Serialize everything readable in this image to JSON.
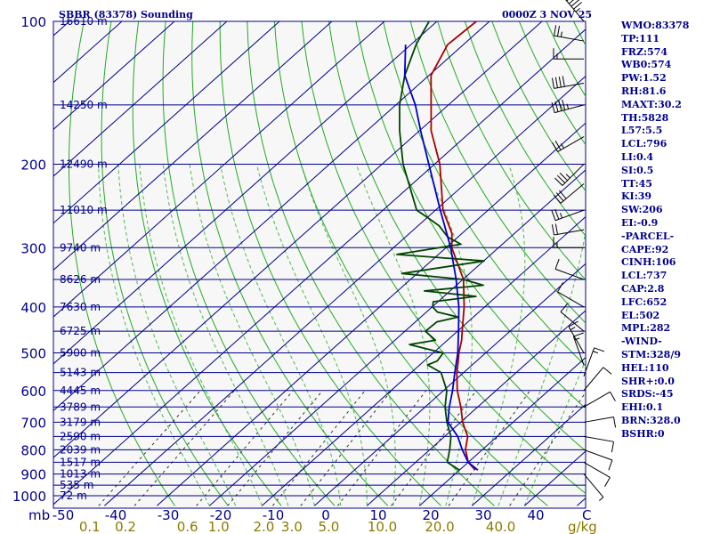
{
  "header": {
    "station_title": "SBBR (83378) Sounding",
    "time_label": "0000Z  3 NOV 25"
  },
  "colors": {
    "frame": "#00008b",
    "isotherm": "#00008b",
    "dry_adiabat": "#22aa22",
    "moist_adiabat": "#22aa22",
    "mixing_ratio": "#333333",
    "temperature": "#aa0000",
    "dewpoint": "#004400",
    "parcel": "#0000cc",
    "wind": "#000000"
  },
  "indices": [
    "WMO:83378",
    "TP:111",
    "FRZ:574",
    "WB0:574",
    "PW:1.52",
    "RH:81.6",
    "MAXT:30.2",
    "TH:5828",
    "L57:5.5",
    "LCL:796",
    "LI:0.4",
    "SI:0.5",
    "TT:45",
    "KI:39",
    "SW:206",
    "EI:-0.9",
    "-PARCEL-",
    "CAPE:92",
    "CINH:106",
    "LCL:737",
    "CAP:2.8",
    "LFC:652",
    "EL:502",
    "MPL:282",
    "-WIND-",
    "STM:328/9",
    "HEL:110",
    "SHR+:0.0",
    "SRDS:-45",
    "EHI:0.1",
    "BRN:328.0",
    "BSHR:0"
  ],
  "chart_data": {
    "type": "skew-t",
    "ylabel": "mb",
    "xlabel": "C",
    "mixing_ratio_unit": "g/kg",
    "pressure_ticks": [
      {
        "p": 100,
        "label": "100"
      },
      {
        "p": 200,
        "label": "200"
      },
      {
        "p": 300,
        "label": "300"
      },
      {
        "p": 400,
        "label": "400"
      },
      {
        "p": 500,
        "label": "500"
      },
      {
        "p": 600,
        "label": "600"
      },
      {
        "p": 700,
        "label": "700"
      },
      {
        "p": 800,
        "label": "800"
      },
      {
        "p": 900,
        "label": "900"
      },
      {
        "p": 1000,
        "label": "1000"
      }
    ],
    "height_levels": [
      {
        "p": 100,
        "label": "16610 m"
      },
      {
        "p": 150,
        "label": "14250 m"
      },
      {
        "p": 200,
        "label": "12490 m"
      },
      {
        "p": 250,
        "label": "11010 m"
      },
      {
        "p": 300,
        "label": "9740 m"
      },
      {
        "p": 350,
        "label": "8626 m"
      },
      {
        "p": 400,
        "label": "7630 m"
      },
      {
        "p": 450,
        "label": "6725 m"
      },
      {
        "p": 500,
        "label": "5900 m"
      },
      {
        "p": 550,
        "label": "5143 m"
      },
      {
        "p": 600,
        "label": "4445 m"
      },
      {
        "p": 650,
        "label": "3789 m"
      },
      {
        "p": 700,
        "label": "3179 m"
      },
      {
        "p": 750,
        "label": "2590 m"
      },
      {
        "p": 800,
        "label": "2039 m"
      },
      {
        "p": 850,
        "label": "1517 m"
      },
      {
        "p": 900,
        "label": "1013 m"
      },
      {
        "p": 950,
        "label": "535 m"
      },
      {
        "p": 1000,
        "label": "72 m"
      }
    ],
    "temperature_ticks": [
      "-50",
      "-40",
      "-30",
      "-20",
      "-10",
      "0",
      "10",
      "20",
      "30",
      "40"
    ],
    "temperature_values": [
      -50,
      -40,
      -30,
      -20,
      -10,
      0,
      10,
      20,
      30,
      40
    ],
    "mixing_ratio_ticks": [
      "0.1",
      "0.2",
      "0.6",
      "1.0",
      "2.0",
      "3.0",
      "5.0",
      "10.0",
      "20.0",
      "40.0"
    ],
    "mixing_ratio_values": [
      0.1,
      0.2,
      0.6,
      1.0,
      2.0,
      3.0,
      5.0,
      10.0,
      20.0,
      40.0
    ],
    "xlim": [
      -50,
      50
    ],
    "ylim": [
      1050,
      100
    ],
    "series": [
      {
        "key": "temperature",
        "points": [
          [
            883,
            23.0
          ],
          [
            850,
            20.0
          ],
          [
            800,
            16.8
          ],
          [
            750,
            14.4
          ],
          [
            700,
            10.4
          ],
          [
            650,
            6.8
          ],
          [
            600,
            2.6
          ],
          [
            550,
            -1.3
          ],
          [
            520,
            -3.5
          ],
          [
            500,
            -5.1
          ],
          [
            470,
            -7.3
          ],
          [
            450,
            -9.1
          ],
          [
            400,
            -13.9
          ],
          [
            350,
            -19.9
          ],
          [
            300,
            -28.9
          ],
          [
            280,
            -31.9
          ],
          [
            250,
            -38.6
          ],
          [
            200,
            -49.0
          ],
          [
            170,
            -57.8
          ],
          [
            150,
            -63.3
          ],
          [
            130,
            -69.6
          ],
          [
            112,
            -73.0
          ],
          [
            100,
            -72.5
          ]
        ]
      },
      {
        "key": "dewpoint",
        "points": [
          [
            883,
            20.0
          ],
          [
            850,
            16.0
          ],
          [
            800,
            13.8
          ],
          [
            750,
            11.2
          ],
          [
            700,
            7.4
          ],
          [
            650,
            3.8
          ],
          [
            600,
            0.6
          ],
          [
            550,
            -4.3
          ],
          [
            530,
            -8.5
          ],
          [
            520,
            -7.5
          ],
          [
            500,
            -8.1
          ],
          [
            480,
            -16.3
          ],
          [
            470,
            -12.3
          ],
          [
            450,
            -16.1
          ],
          [
            430,
            -15.9
          ],
          [
            420,
            -12.9
          ],
          [
            410,
            -17.9
          ],
          [
            400,
            -19.9
          ],
          [
            390,
            -20.9
          ],
          [
            380,
            -13.9
          ],
          [
            370,
            -24.9
          ],
          [
            360,
            -14.9
          ],
          [
            350,
            -19.9
          ],
          [
            340,
            -32.9
          ],
          [
            320,
            -19.9
          ],
          [
            310,
            -37.9
          ],
          [
            295,
            -27.9
          ],
          [
            285,
            -31.9
          ],
          [
            270,
            -35.9
          ],
          [
            260,
            -39.6
          ],
          [
            250,
            -43.6
          ],
          [
            200,
            -56.0
          ],
          [
            170,
            -63.8
          ],
          [
            150,
            -69.3
          ],
          [
            130,
            -74.6
          ],
          [
            112,
            -79.0
          ],
          [
            100,
            -81.5
          ]
        ]
      },
      {
        "key": "parcel",
        "points": [
          [
            883,
            23.5
          ],
          [
            850,
            20.0
          ],
          [
            800,
            16.2
          ],
          [
            750,
            12.5
          ],
          [
            700,
            7.6
          ],
          [
            650,
            4.6
          ],
          [
            600,
            1.7
          ],
          [
            550,
            -1.7
          ],
          [
            500,
            -5.3
          ],
          [
            450,
            -9.8
          ],
          [
            400,
            -14.9
          ],
          [
            350,
            -21.3
          ],
          [
            300,
            -29.1
          ],
          [
            250,
            -39.1
          ],
          [
            200,
            -51.1
          ],
          [
            170,
            -59.8
          ],
          [
            150,
            -66.3
          ],
          [
            130,
            -74.6
          ],
          [
            112,
            -81.0
          ]
        ]
      }
    ],
    "wind_barbs": [
      {
        "p": 100,
        "dir": 320,
        "spd": 55
      },
      {
        "p": 110,
        "dir": 280,
        "spd": 25
      },
      {
        "p": 120,
        "dir": 270,
        "spd": 15
      },
      {
        "p": 135,
        "dir": 260,
        "spd": 40
      },
      {
        "p": 150,
        "dir": 255,
        "spd": 45
      },
      {
        "p": 175,
        "dir": 240,
        "spd": 25
      },
      {
        "p": 200,
        "dir": 225,
        "spd": 35
      },
      {
        "p": 220,
        "dir": 230,
        "spd": 30
      },
      {
        "p": 250,
        "dir": 250,
        "spd": 25
      },
      {
        "p": 275,
        "dir": 260,
        "spd": 20
      },
      {
        "p": 300,
        "dir": 270,
        "spd": 15
      },
      {
        "p": 350,
        "dir": 290,
        "spd": 10
      },
      {
        "p": 400,
        "dir": 300,
        "spd": 10
      },
      {
        "p": 450,
        "dir": 310,
        "spd": 10
      },
      {
        "p": 500,
        "dir": 330,
        "spd": 15
      },
      {
        "p": 530,
        "dir": 340,
        "spd": 15
      },
      {
        "p": 560,
        "dir": 20,
        "spd": 15
      },
      {
        "p": 600,
        "dir": 40,
        "spd": 10
      },
      {
        "p": 650,
        "dir": 60,
        "spd": 10
      },
      {
        "p": 700,
        "dir": 80,
        "spd": 10
      },
      {
        "p": 750,
        "dir": 100,
        "spd": 10
      },
      {
        "p": 800,
        "dir": 110,
        "spd": 10
      },
      {
        "p": 850,
        "dir": 120,
        "spd": 10
      },
      {
        "p": 900,
        "dir": 140,
        "spd": 5
      }
    ]
  }
}
